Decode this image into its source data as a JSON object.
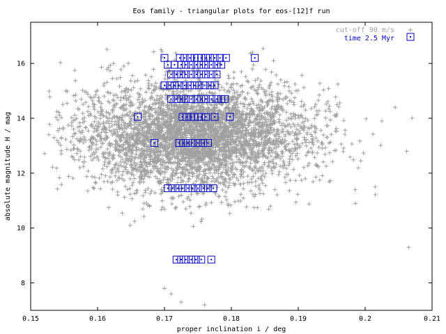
{
  "chart_data": {
    "type": "scatter",
    "title": "Eos family - triangular plots for eos-[12]f run",
    "xlabel": "proper inclination i / deg",
    "ylabel": "absolute magnitude H / mag",
    "xlim": [
      0.15,
      0.21
    ],
    "ylim": [
      7.0,
      17.5
    ],
    "x_ticks": [
      "0.15",
      "0.16",
      "0.17",
      "0.18",
      "0.19",
      "0.2",
      "0.21"
    ],
    "x_tick_values": [
      0.15,
      0.16,
      0.17,
      0.18,
      0.19,
      0.2,
      0.21
    ],
    "y_ticks": [
      "8",
      "10",
      "12",
      "14",
      "16"
    ],
    "y_tick_values": [
      8,
      10,
      12,
      14,
      16
    ],
    "grid": false,
    "legend_placement": "top-right",
    "colors": {
      "background_points": "#a0a0a0",
      "simulated_points": "#0000cc"
    },
    "series": [
      {
        "name": "cut-off 90 m/s",
        "marker": "plus",
        "color": "#a0a0a0",
        "distribution": {
          "count": 4200,
          "x_center": 0.1745,
          "x_spread": 0.0085,
          "y_center": 13.35,
          "y_spread": 0.95,
          "x_range": [
            0.152,
            0.208
          ],
          "y_range": [
            7.2,
            16.6
          ]
        },
        "outliers": [
          [
            0.1535,
            13.3
          ],
          [
            0.1548,
            14.5
          ],
          [
            0.1565,
            12.9
          ],
          [
            0.2062,
            12.8
          ],
          [
            0.2065,
            9.3
          ],
          [
            0.2045,
            14.4
          ],
          [
            0.2015,
            11.5
          ],
          [
            0.1985,
            11.4
          ],
          [
            0.176,
            7.2
          ],
          [
            0.1725,
            7.3
          ],
          [
            0.17,
            7.8
          ],
          [
            0.171,
            7.6
          ],
          [
            0.1695,
            16.5
          ],
          [
            0.1785,
            14.6
          ],
          [
            0.1815,
            15.7
          ],
          [
            0.2025,
            13.9
          ]
        ]
      },
      {
        "name": "time 2.5 Myr",
        "marker": "square",
        "color": "#0000cc",
        "points": [
          [
            0.17,
            16.2
          ],
          [
            0.1723,
            16.2
          ],
          [
            0.173,
            16.2
          ],
          [
            0.1738,
            16.2
          ],
          [
            0.1745,
            16.2
          ],
          [
            0.175,
            16.2
          ],
          [
            0.1755,
            16.2
          ],
          [
            0.1762,
            16.2
          ],
          [
            0.1768,
            16.2
          ],
          [
            0.1775,
            16.2
          ],
          [
            0.1783,
            16.2
          ],
          [
            0.1792,
            16.2
          ],
          [
            0.1835,
            16.2
          ],
          [
            0.1705,
            15.95
          ],
          [
            0.1715,
            15.95
          ],
          [
            0.1725,
            15.95
          ],
          [
            0.1732,
            15.95
          ],
          [
            0.174,
            15.95
          ],
          [
            0.1748,
            15.95
          ],
          [
            0.1755,
            15.95
          ],
          [
            0.1762,
            15.95
          ],
          [
            0.177,
            15.95
          ],
          [
            0.1778,
            15.95
          ],
          [
            0.1785,
            15.95
          ],
          [
            0.171,
            15.6
          ],
          [
            0.1718,
            15.6
          ],
          [
            0.1725,
            15.6
          ],
          [
            0.1732,
            15.6
          ],
          [
            0.174,
            15.6
          ],
          [
            0.1748,
            15.6
          ],
          [
            0.1755,
            15.6
          ],
          [
            0.1762,
            15.6
          ],
          [
            0.177,
            15.6
          ],
          [
            0.1778,
            15.6
          ],
          [
            0.17,
            15.2
          ],
          [
            0.1708,
            15.2
          ],
          [
            0.1715,
            15.2
          ],
          [
            0.1722,
            15.2
          ],
          [
            0.173,
            15.2
          ],
          [
            0.1738,
            15.2
          ],
          [
            0.1745,
            15.2
          ],
          [
            0.1752,
            15.2
          ],
          [
            0.176,
            15.2
          ],
          [
            0.1768,
            15.2
          ],
          [
            0.1775,
            15.2
          ],
          [
            0.171,
            14.7
          ],
          [
            0.1718,
            14.7
          ],
          [
            0.1725,
            14.7
          ],
          [
            0.1732,
            14.7
          ],
          [
            0.174,
            14.7
          ],
          [
            0.1748,
            14.7
          ],
          [
            0.1755,
            14.7
          ],
          [
            0.1762,
            14.7
          ],
          [
            0.177,
            14.7
          ],
          [
            0.1778,
            14.7
          ],
          [
            0.1785,
            14.7
          ],
          [
            0.179,
            14.7
          ],
          [
            0.166,
            14.05
          ],
          [
            0.1727,
            14.05
          ],
          [
            0.1733,
            14.05
          ],
          [
            0.174,
            14.05
          ],
          [
            0.1745,
            14.05
          ],
          [
            0.175,
            14.05
          ],
          [
            0.1755,
            14.05
          ],
          [
            0.1762,
            14.05
          ],
          [
            0.1775,
            14.05
          ],
          [
            0.1798,
            14.05
          ],
          [
            0.1685,
            13.1
          ],
          [
            0.1722,
            13.1
          ],
          [
            0.1728,
            13.1
          ],
          [
            0.1735,
            13.1
          ],
          [
            0.1742,
            13.1
          ],
          [
            0.175,
            13.1
          ],
          [
            0.1758,
            13.1
          ],
          [
            0.1765,
            13.1
          ],
          [
            0.1705,
            11.45
          ],
          [
            0.1712,
            11.45
          ],
          [
            0.172,
            11.45
          ],
          [
            0.1727,
            11.45
          ],
          [
            0.1735,
            11.45
          ],
          [
            0.1742,
            11.45
          ],
          [
            0.175,
            11.45
          ],
          [
            0.1758,
            11.45
          ],
          [
            0.1765,
            11.45
          ],
          [
            0.1773,
            11.45
          ],
          [
            0.1718,
            8.85
          ],
          [
            0.1725,
            8.85
          ],
          [
            0.1732,
            8.85
          ],
          [
            0.174,
            8.85
          ],
          [
            0.1747,
            8.85
          ],
          [
            0.1755,
            8.85
          ],
          [
            0.177,
            8.85
          ]
        ]
      }
    ]
  }
}
